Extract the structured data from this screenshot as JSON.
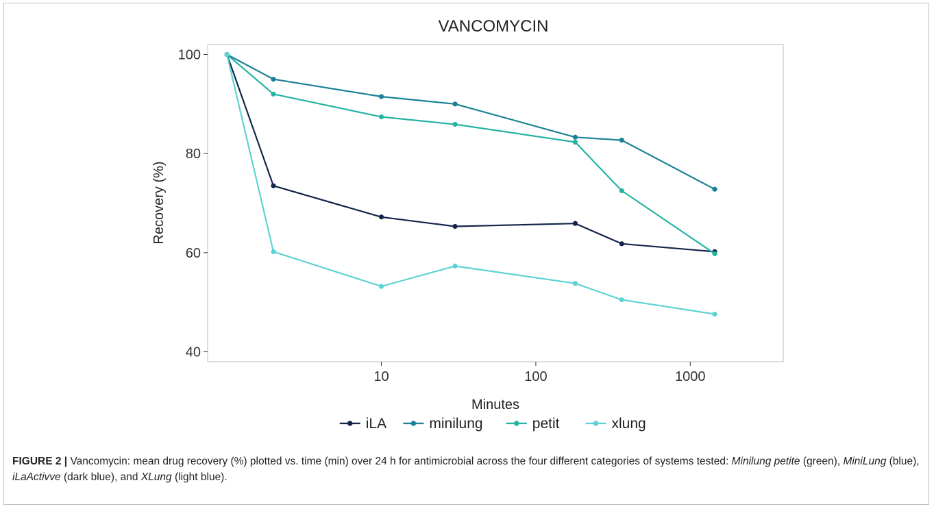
{
  "chart_data": {
    "type": "line",
    "title": "VANCOMYCIN",
    "xlabel": "Minutes",
    "ylabel": "Recovery (%)",
    "x_scale": "log",
    "xlim": [
      0.75,
      4000
    ],
    "ylim": [
      38,
      102
    ],
    "x_ticks": [
      10,
      100,
      1000
    ],
    "x_tick_labels": [
      "10",
      "100",
      "1000"
    ],
    "y_ticks": [
      40,
      60,
      80,
      100
    ],
    "y_tick_labels": [
      "40",
      "60",
      "80",
      "100"
    ],
    "grid": false,
    "legend_position": "bottom",
    "x": [
      1,
      2,
      10,
      30,
      180,
      360,
      1440
    ],
    "series": [
      {
        "name": "iLA",
        "color": "#14244a",
        "values": [
          100,
          73.5,
          67.2,
          65.3,
          65.9,
          61.8,
          60.2
        ]
      },
      {
        "name": "minilung",
        "color": "#1a8295",
        "values": [
          100,
          95.0,
          91.5,
          90.0,
          83.3,
          82.7,
          72.8
        ]
      },
      {
        "name": "petit",
        "color": "#25b3a2",
        "values": [
          100,
          92.0,
          87.4,
          85.9,
          82.3,
          72.5,
          59.8
        ]
      },
      {
        "name": "xlung",
        "color": "#5dd2d2",
        "values": [
          100,
          60.2,
          53.2,
          57.3,
          53.8,
          50.5,
          47.6
        ]
      }
    ]
  },
  "caption": {
    "label": "FIGURE 2 |",
    "text_1": " Vancomycin: mean drug recovery (%) plotted vs. time (min) over 24 h for antimicrobial across the four different categories of systems tested: ",
    "em_1": "Minilung petite",
    "text_2": " (green), ",
    "em_2": "MiniLung",
    "text_3": " (blue), ",
    "em_3": "iLaActivve",
    "text_4": " (dark blue), and ",
    "em_4": "XLung",
    "text_5": " (light blue)."
  }
}
